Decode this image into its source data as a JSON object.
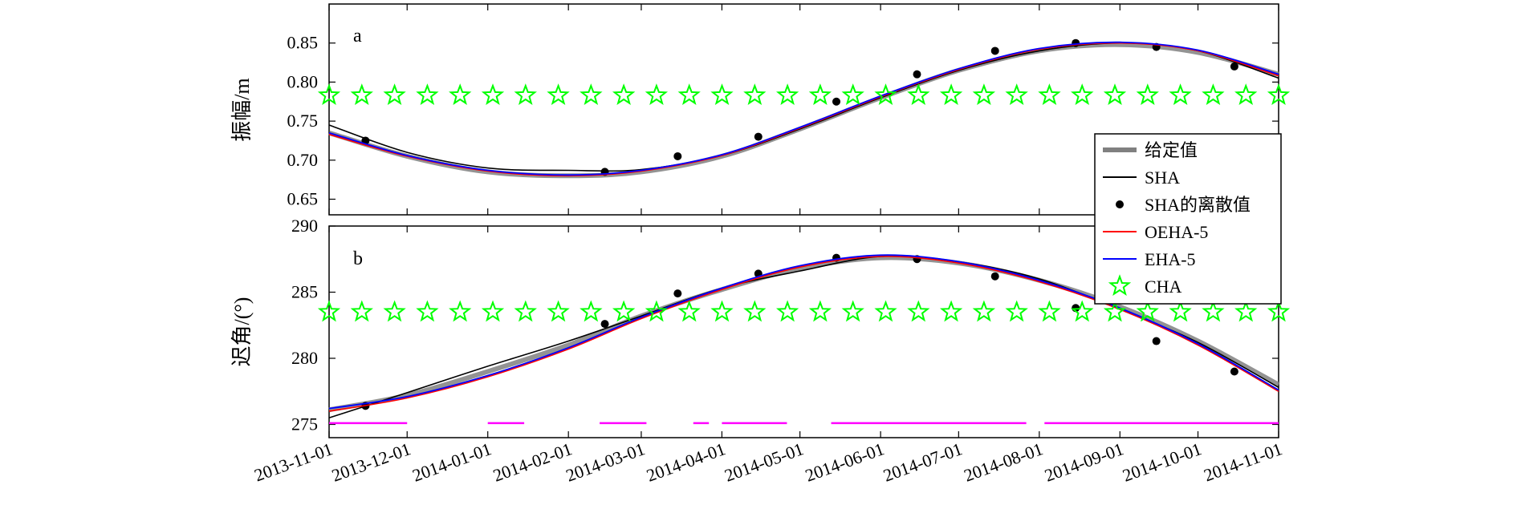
{
  "chart_data": [
    {
      "type": "line",
      "panel_label": "a",
      "ylabel": "振幅/m",
      "ylim": [
        0.63,
        0.9
      ],
      "yticks": [
        0.65,
        0.7,
        0.75,
        0.8,
        0.85
      ],
      "ytick_labels": [
        "0.65",
        "0.70",
        "0.75",
        "0.80",
        "0.85"
      ],
      "xlim": [
        "2013-11-01",
        "2014-11-01"
      ],
      "series": [
        {
          "name": "给定值",
          "color": "#808080",
          "x": [
            "2013-11-01",
            "2013-12-01",
            "2014-01-01",
            "2014-02-01",
            "2014-03-01",
            "2014-04-01",
            "2014-05-01",
            "2014-06-01",
            "2014-07-01",
            "2014-08-01",
            "2014-09-01",
            "2014-10-01",
            "2014-11-01"
          ],
          "y": [
            0.735,
            0.705,
            0.685,
            0.68,
            0.685,
            0.705,
            0.74,
            0.78,
            0.815,
            0.84,
            0.848,
            0.838,
            0.81
          ]
        },
        {
          "name": "SHA",
          "color": "#000000",
          "x": [
            "2013-11-01",
            "2013-12-01",
            "2014-01-01",
            "2014-02-01",
            "2014-03-01",
            "2014-04-01",
            "2014-05-01",
            "2014-06-01",
            "2014-07-01",
            "2014-08-01",
            "2014-09-01",
            "2014-10-01",
            "2014-11-01"
          ],
          "y": [
            0.745,
            0.71,
            0.69,
            0.687,
            0.688,
            0.706,
            0.74,
            0.78,
            0.815,
            0.84,
            0.85,
            0.84,
            0.805
          ]
        },
        {
          "name": "SHA的离散值",
          "color": "#000000",
          "x": [
            "2013-11-15",
            "2014-02-15",
            "2014-03-15",
            "2014-04-15",
            "2014-05-15",
            "2014-06-15",
            "2014-07-15",
            "2014-08-15",
            "2014-09-15",
            "2014-10-15"
          ],
          "y": [
            0.725,
            0.685,
            0.705,
            0.73,
            0.775,
            0.81,
            0.84,
            0.85,
            0.845,
            0.82
          ]
        },
        {
          "name": "OEHA-5",
          "color": "#ff0000",
          "x": [
            "2013-11-01",
            "2013-12-01",
            "2014-01-01",
            "2014-02-01",
            "2014-03-01",
            "2014-04-01",
            "2014-05-01",
            "2014-06-01",
            "2014-07-01",
            "2014-08-01",
            "2014-09-01",
            "2014-10-01",
            "2014-11-01"
          ],
          "y": [
            0.733,
            0.705,
            0.686,
            0.68,
            0.686,
            0.706,
            0.741,
            0.781,
            0.816,
            0.842,
            0.85,
            0.84,
            0.808
          ]
        },
        {
          "name": "EHA-5",
          "color": "#0000ff",
          "x": [
            "2013-11-01",
            "2013-12-01",
            "2014-01-01",
            "2014-02-01",
            "2014-03-01",
            "2014-04-01",
            "2014-05-01",
            "2014-06-01",
            "2014-07-01",
            "2014-08-01",
            "2014-09-01",
            "2014-10-01",
            "2014-11-01"
          ],
          "y": [
            0.735,
            0.706,
            0.687,
            0.681,
            0.687,
            0.707,
            0.742,
            0.782,
            0.817,
            0.843,
            0.851,
            0.841,
            0.81
          ]
        },
        {
          "name": "CHA",
          "color": "#00ff00",
          "constant_y": 0.783
        }
      ]
    },
    {
      "type": "line",
      "panel_label": "b",
      "ylabel": "迟角/(°)",
      "ylim": [
        274,
        290
      ],
      "yticks": [
        275,
        280,
        285,
        290
      ],
      "ytick_labels": [
        "275",
        "280",
        "285",
        "290"
      ],
      "xlim": [
        "2013-11-01",
        "2014-11-01"
      ],
      "xtick_labels": [
        "2013-11-01",
        "2013-12-01",
        "2014-01-01",
        "2014-02-01",
        "2014-03-01",
        "2014-04-01",
        "2014-05-01",
        "2014-06-01",
        "2014-07-01",
        "2014-08-01",
        "2014-09-01",
        "2014-10-01",
        "2014-11-01"
      ],
      "series": [
        {
          "name": "给定值",
          "color": "#808080",
          "x": [
            "2013-11-01",
            "2013-12-01",
            "2014-01-01",
            "2014-02-01",
            "2014-03-01",
            "2014-04-01",
            "2014-05-01",
            "2014-06-01",
            "2014-07-01",
            "2014-08-01",
            "2014-09-01",
            "2014-10-01",
            "2014-11-01"
          ],
          "y": [
            276.1,
            277.2,
            279.0,
            281.0,
            283.2,
            285.2,
            286.8,
            287.6,
            287.2,
            285.9,
            283.9,
            281.3,
            278.0
          ]
        },
        {
          "name": "SHA",
          "color": "#000000",
          "x": [
            "2013-11-01",
            "2013-12-01",
            "2014-01-01",
            "2014-02-01",
            "2014-03-01",
            "2014-04-01",
            "2014-05-01",
            "2014-06-01",
            "2014-07-01",
            "2014-08-01",
            "2014-09-01",
            "2014-10-01",
            "2014-11-01"
          ],
          "y": [
            275.5,
            277.4,
            279.4,
            281.3,
            283.2,
            285.3,
            286.6,
            287.7,
            287.3,
            286.0,
            283.7,
            281.2,
            277.8
          ]
        },
        {
          "name": "SHA的离散值",
          "color": "#000000",
          "x": [
            "2013-11-15",
            "2014-02-15",
            "2014-03-15",
            "2014-04-15",
            "2014-05-15",
            "2014-06-15",
            "2014-07-15",
            "2014-08-15",
            "2014-09-15",
            "2014-10-15"
          ],
          "y": [
            276.4,
            282.6,
            284.9,
            286.4,
            287.6,
            287.5,
            286.2,
            283.8,
            281.3,
            279.0
          ]
        },
        {
          "name": "OEHA-5",
          "color": "#ff0000",
          "x": [
            "2013-11-01",
            "2013-12-01",
            "2014-01-01",
            "2014-02-01",
            "2014-03-01",
            "2014-04-01",
            "2014-05-01",
            "2014-06-01",
            "2014-07-01",
            "2014-08-01",
            "2014-09-01",
            "2014-10-01",
            "2014-11-01"
          ],
          "y": [
            276.0,
            277.0,
            278.6,
            280.7,
            283.0,
            285.2,
            286.9,
            287.7,
            287.2,
            285.8,
            283.7,
            281.0,
            277.5
          ]
        },
        {
          "name": "EHA-5",
          "color": "#0000ff",
          "x": [
            "2013-11-01",
            "2013-12-01",
            "2014-01-01",
            "2014-02-01",
            "2014-03-01",
            "2014-04-01",
            "2014-05-01",
            "2014-06-01",
            "2014-07-01",
            "2014-08-01",
            "2014-09-01",
            "2014-10-01",
            "2014-11-01"
          ],
          "y": [
            276.2,
            277.1,
            278.7,
            280.8,
            283.1,
            285.3,
            287.0,
            287.8,
            287.3,
            285.9,
            283.8,
            281.1,
            277.6
          ]
        },
        {
          "name": "CHA",
          "color": "#00ff00",
          "constant_y": 283.5
        },
        {
          "name": "",
          "color": "#ff00ff",
          "constant_y": 275.1,
          "segments": [
            [
              "2013-11-01",
              "2013-12-01"
            ],
            [
              "2014-01-01",
              "2014-01-15"
            ],
            [
              "2014-02-13",
              "2014-03-03"
            ],
            [
              "2014-03-21",
              "2014-03-27"
            ],
            [
              "2014-04-01",
              "2014-04-26"
            ],
            [
              "2014-05-13",
              "2014-07-27"
            ],
            [
              "2014-08-03",
              "2014-11-01"
            ]
          ]
        }
      ]
    }
  ],
  "legend": {
    "location": "right",
    "entries": [
      {
        "label": "给定值",
        "kind": "thick-line",
        "color": "#808080"
      },
      {
        "label": "SHA",
        "kind": "line",
        "color": "#000000"
      },
      {
        "label": "SHA的离散值",
        "kind": "dot",
        "color": "#000000"
      },
      {
        "label": "OEHA-5",
        "kind": "line",
        "color": "#ff0000"
      },
      {
        "label": "EHA-5",
        "kind": "line",
        "color": "#0000ff"
      },
      {
        "label": "CHA",
        "kind": "star",
        "color": "#00ff00"
      }
    ]
  }
}
